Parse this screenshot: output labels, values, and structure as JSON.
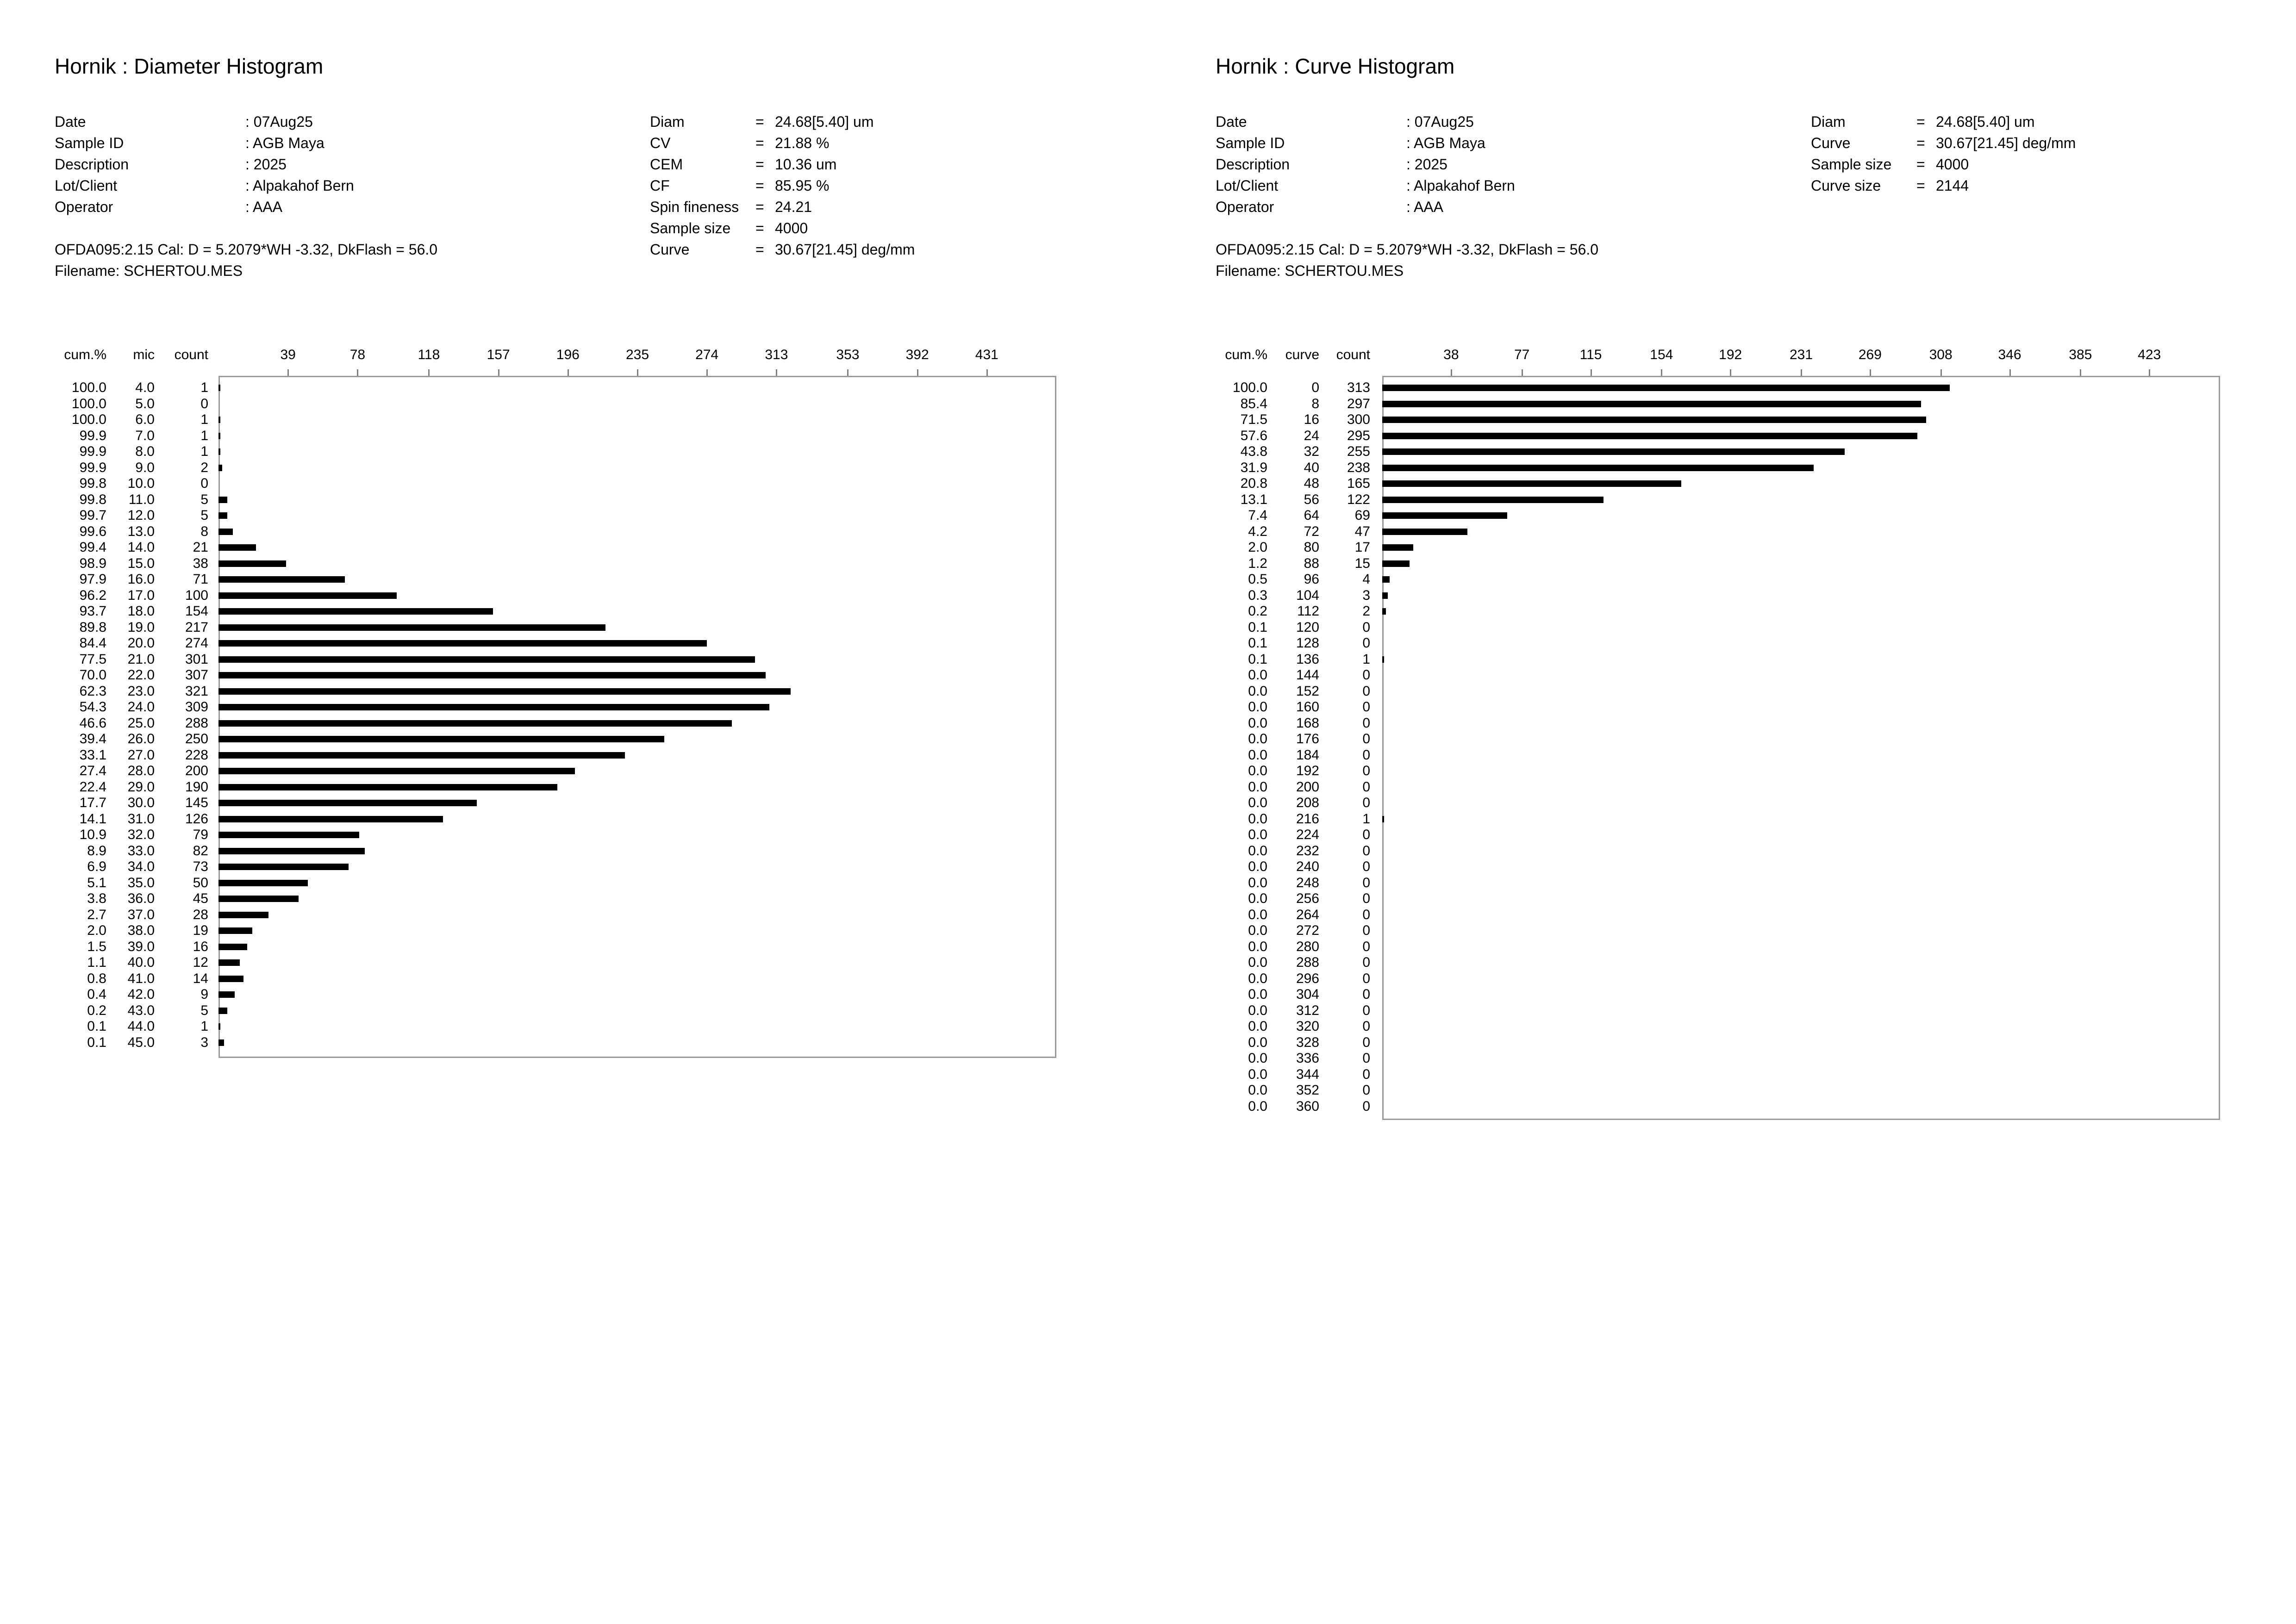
{
  "panels": [
    {
      "id": "diameter",
      "title": "Hornik : Diameter Histogram",
      "meta_left": [
        {
          "key": "Date",
          "value": ": 07Aug25"
        },
        {
          "key": "Sample ID",
          "value": ": AGB Maya"
        },
        {
          "key": "Description",
          "value": ": 2025"
        },
        {
          "key": "Lot/Client",
          "value": ": Alpakahof Bern"
        },
        {
          "key": "Operator",
          "value": ": AAA"
        }
      ],
      "meta_right": [
        {
          "key": "Diam",
          "eq": "=",
          "value": "24.68[5.40] um"
        },
        {
          "key": "CV",
          "eq": "=",
          "value": "21.88 %"
        },
        {
          "key": "CEM",
          "eq": "=",
          "value": "10.36 um"
        },
        {
          "key": "CF",
          "eq": "=",
          "value": "85.95 %"
        },
        {
          "key": "Spin fineness",
          "eq": "=",
          "value": "24.21"
        },
        {
          "key": "Sample size",
          "eq": "=",
          "value": "4000"
        },
        {
          "key": "Curve",
          "eq": "=",
          "value": "30.67[21.45] deg/mm"
        }
      ],
      "calibration": "OFDA095:2.15 Cal: D = 5.2079*WH -3.32, DkFlash =  56.0",
      "filename": "Filename: SCHERTOU.MES",
      "headers": [
        "cum.%",
        "mic",
        "count"
      ]
    },
    {
      "id": "curve",
      "title": "Hornik : Curve Histogram",
      "meta_left": [
        {
          "key": "Date",
          "value": ": 07Aug25"
        },
        {
          "key": "Sample ID",
          "value": ": AGB Maya"
        },
        {
          "key": "Description",
          "value": ": 2025"
        },
        {
          "key": "Lot/Client",
          "value": ": Alpakahof Bern"
        },
        {
          "key": "Operator",
          "value": ": AAA"
        }
      ],
      "meta_right": [
        {
          "key": "Diam",
          "eq": "=",
          "value": "24.68[5.40] um"
        },
        {
          "key": "Curve",
          "eq": "=",
          "value": "30.67[21.45] deg/mm"
        },
        {
          "key": "Sample size",
          "eq": "=",
          "value": "4000"
        },
        {
          "key": "Curve size",
          "eq": "=",
          "value": "2144"
        }
      ],
      "calibration": "OFDA095:2.15 Cal: D = 5.2079*WH -3.32, DkFlash =  56.0",
      "filename": "Filename: SCHERTOU.MES",
      "headers": [
        "cum.%",
        "curve",
        "count"
      ]
    }
  ],
  "chart_data": [
    {
      "type": "bar",
      "orientation": "horizontal",
      "title": "Hornik : Diameter Histogram",
      "columns": [
        "cum.%",
        "mic",
        "count"
      ],
      "scale_ticks": [
        "39",
        "78",
        "118",
        "157",
        "196",
        "235",
        "274",
        "313",
        "353",
        "392",
        "431"
      ],
      "xlim": [
        0,
        470
      ],
      "categories": [
        "4.0",
        "5.0",
        "6.0",
        "7.0",
        "8.0",
        "9.0",
        "10.0",
        "11.0",
        "12.0",
        "13.0",
        "14.0",
        "15.0",
        "16.0",
        "17.0",
        "18.0",
        "19.0",
        "20.0",
        "21.0",
        "22.0",
        "23.0",
        "24.0",
        "25.0",
        "26.0",
        "27.0",
        "28.0",
        "29.0",
        "30.0",
        "31.0",
        "32.0",
        "33.0",
        "34.0",
        "35.0",
        "36.0",
        "37.0",
        "38.0",
        "39.0",
        "40.0",
        "41.0",
        "42.0",
        "43.0",
        "44.0",
        "45.0"
      ],
      "cum_percent": [
        "100.0",
        "100.0",
        "100.0",
        "99.9",
        "99.9",
        "99.9",
        "99.8",
        "99.8",
        "99.7",
        "99.6",
        "99.4",
        "98.9",
        "97.9",
        "96.2",
        "93.7",
        "89.8",
        "84.4",
        "77.5",
        "70.0",
        "62.3",
        "54.3",
        "46.6",
        "39.4",
        "33.1",
        "27.4",
        "22.4",
        "17.7",
        "14.1",
        "10.9",
        "8.9",
        "6.9",
        "5.1",
        "3.8",
        "2.7",
        "2.0",
        "1.5",
        "1.1",
        "0.8",
        "0.4",
        "0.2",
        "0.1",
        "0.1"
      ],
      "values": [
        1,
        0,
        1,
        1,
        1,
        2,
        0,
        5,
        5,
        8,
        21,
        38,
        71,
        100,
        154,
        217,
        274,
        301,
        307,
        321,
        309,
        288,
        250,
        228,
        200,
        190,
        145,
        126,
        79,
        82,
        73,
        50,
        45,
        28,
        19,
        16,
        12,
        14,
        9,
        5,
        1,
        3
      ],
      "grid": false
    },
    {
      "type": "bar",
      "orientation": "horizontal",
      "title": "Hornik : Curve Histogram",
      "columns": [
        "cum.%",
        "curve",
        "count"
      ],
      "scale_ticks": [
        "38",
        "77",
        "115",
        "154",
        "192",
        "231",
        "269",
        "308",
        "346",
        "385",
        "423"
      ],
      "xlim": [
        0,
        462
      ],
      "categories": [
        "0",
        "8",
        "16",
        "24",
        "32",
        "40",
        "48",
        "56",
        "64",
        "72",
        "80",
        "88",
        "96",
        "104",
        "112",
        "120",
        "128",
        "136",
        "144",
        "152",
        "160",
        "168",
        "176",
        "184",
        "192",
        "200",
        "208",
        "216",
        "224",
        "232",
        "240",
        "248",
        "256",
        "264",
        "272",
        "280",
        "288",
        "296",
        "304",
        "312",
        "320",
        "328",
        "336",
        "344",
        "352",
        "360"
      ],
      "cum_percent": [
        "100.0",
        "85.4",
        "71.5",
        "57.6",
        "43.8",
        "31.9",
        "20.8",
        "13.1",
        "7.4",
        "4.2",
        "2.0",
        "1.2",
        "0.5",
        "0.3",
        "0.2",
        "0.1",
        "0.1",
        "0.1",
        "0.0",
        "0.0",
        "0.0",
        "0.0",
        "0.0",
        "0.0",
        "0.0",
        "0.0",
        "0.0",
        "0.0",
        "0.0",
        "0.0",
        "0.0",
        "0.0",
        "0.0",
        "0.0",
        "0.0",
        "0.0",
        "0.0",
        "0.0",
        "0.0",
        "0.0",
        "0.0",
        "0.0",
        "0.0",
        "0.0",
        "0.0",
        "0.0"
      ],
      "values": [
        313,
        297,
        300,
        295,
        255,
        238,
        165,
        122,
        69,
        47,
        17,
        15,
        4,
        3,
        2,
        0,
        0,
        1,
        0,
        0,
        0,
        0,
        0,
        0,
        0,
        0,
        0,
        1,
        0,
        0,
        0,
        0,
        0,
        0,
        0,
        0,
        0,
        0,
        0,
        0,
        0,
        0,
        0,
        0,
        0,
        0
      ],
      "grid": false
    }
  ]
}
